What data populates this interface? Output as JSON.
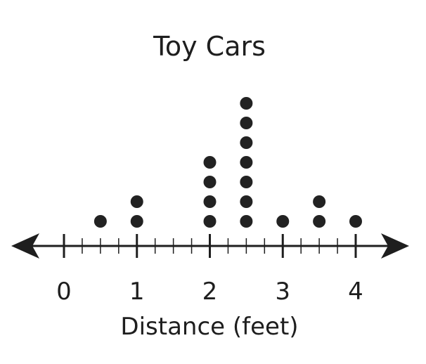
{
  "chart_data": {
    "type": "scatter",
    "subtype": "dot-plot",
    "title": "Toy Cars",
    "xlabel": "Distance (feet)",
    "ylabel": "",
    "xlim": [
      0,
      4
    ],
    "major_ticks": [
      0,
      1,
      2,
      3,
      4
    ],
    "tick_labels": [
      "0",
      "1",
      "2",
      "3",
      "4"
    ],
    "minor_step": 0.25,
    "x": [
      0.5,
      1,
      2,
      2.5,
      3,
      3.5,
      4
    ],
    "counts": [
      1,
      2,
      4,
      7,
      1,
      2,
      1
    ],
    "grid": false,
    "colors": {
      "ink": "#1e1e1e",
      "dot": "#222222"
    }
  }
}
